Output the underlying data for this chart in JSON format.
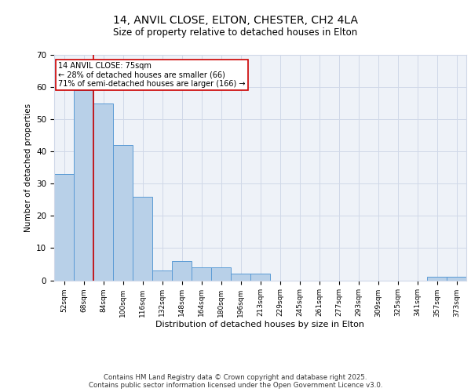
{
  "title1": "14, ANVIL CLOSE, ELTON, CHESTER, CH2 4LA",
  "title2": "Size of property relative to detached houses in Elton",
  "xlabel": "Distribution of detached houses by size in Elton",
  "ylabel": "Number of detached properties",
  "categories": [
    "52sqm",
    "68sqm",
    "84sqm",
    "100sqm",
    "116sqm",
    "132sqm",
    "148sqm",
    "164sqm",
    "180sqm",
    "196sqm",
    "213sqm",
    "229sqm",
    "245sqm",
    "261sqm",
    "277sqm",
    "293sqm",
    "309sqm",
    "325sqm",
    "341sqm",
    "357sqm",
    "373sqm"
  ],
  "values": [
    33,
    59,
    55,
    42,
    26,
    3,
    6,
    4,
    4,
    2,
    2,
    0,
    0,
    0,
    0,
    0,
    0,
    0,
    0,
    1,
    1
  ],
  "bar_color": "#b8d0e8",
  "bar_edge_color": "#5b9bd5",
  "grid_color": "#d0d8e8",
  "background_color": "#eef2f8",
  "annotation_text": "14 ANVIL CLOSE: 75sqm\n← 28% of detached houses are smaller (66)\n71% of semi-detached houses are larger (166) →",
  "ylim": [
    0,
    70
  ],
  "yticks": [
    0,
    10,
    20,
    30,
    40,
    50,
    60,
    70
  ],
  "footer": "Contains HM Land Registry data © Crown copyright and database right 2025.\nContains public sector information licensed under the Open Government Licence v3.0.",
  "annotation_box_color": "#cc0000",
  "red_line_x": 1.5
}
